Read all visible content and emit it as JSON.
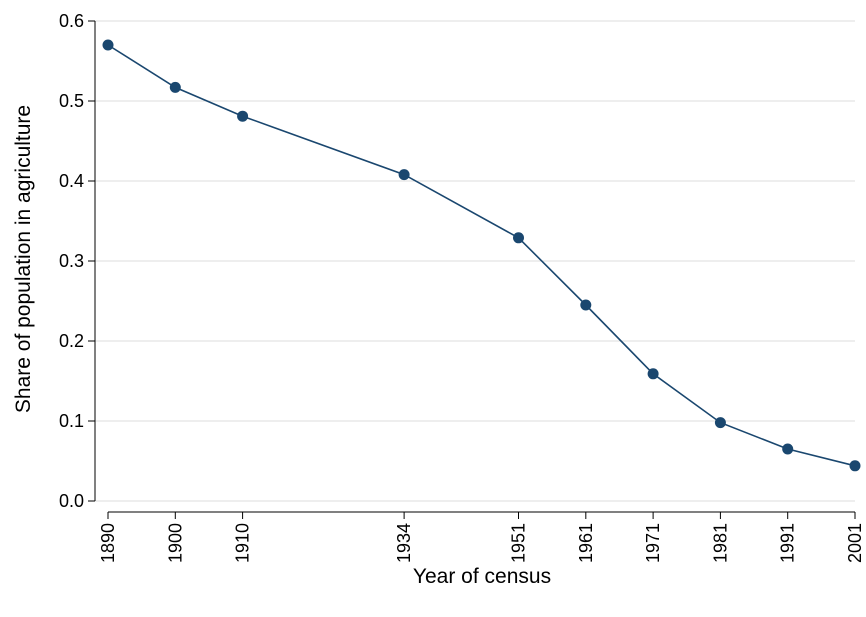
{
  "chart_data": {
    "type": "line",
    "title": "",
    "xlabel": "Year of census",
    "ylabel": "Share of population in agriculture",
    "x": [
      1890,
      1900,
      1910,
      1934,
      1951,
      1961,
      1971,
      1981,
      1991,
      2001
    ],
    "x_tick_labels": [
      "1890",
      "1900",
      "1910",
      "1934",
      "1951",
      "1961",
      "1971",
      "1981",
      "1991",
      "2001"
    ],
    "y_ticks": [
      0.0,
      0.1,
      0.2,
      0.3,
      0.4,
      0.5,
      0.6
    ],
    "y_tick_labels": [
      "0.0",
      "0.1",
      "0.2",
      "0.3",
      "0.4",
      "0.5",
      "0.6"
    ],
    "xlim": [
      1890,
      2001
    ],
    "ylim": [
      0.0,
      0.6
    ],
    "grid": "horizontal",
    "series": [
      {
        "values": [
          0.57,
          0.517,
          0.481,
          0.408,
          0.329,
          0.245,
          0.159,
          0.098,
          0.065,
          0.044
        ],
        "color": "#1a476f"
      }
    ]
  }
}
